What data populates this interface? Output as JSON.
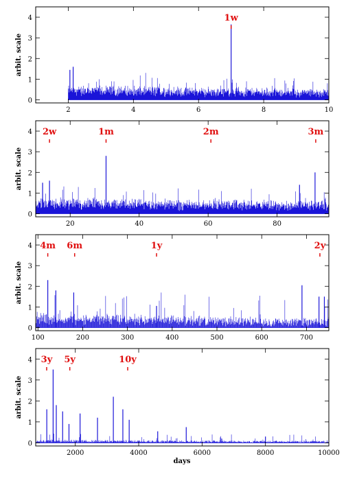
{
  "colors": {
    "series": "#1a14d8",
    "annotation": "#e01010",
    "axis": "#000000"
  },
  "chart_data": [
    {
      "type": "line",
      "title": "",
      "xlabel": "",
      "ylabel": "arbit. scale",
      "xlim": [
        1,
        10
      ],
      "ylim": [
        -0.15,
        4.5
      ],
      "xticks": [
        2,
        4,
        6,
        8,
        10
      ],
      "yticks": [
        0,
        1,
        2,
        3,
        4
      ],
      "noise": {
        "x_start": 2,
        "x_end": 10,
        "baseline": 0.45,
        "amplitude": 0.55,
        "decay_to": 0.3,
        "step": 0.012
      },
      "peaks": [
        {
          "x": 2.05,
          "y": 1.45
        },
        {
          "x": 2.15,
          "y": 1.6
        },
        {
          "x": 7.0,
          "y": 3.65
        }
      ],
      "annotations": [
        {
          "label": "1w",
          "x": 7.0
        }
      ]
    },
    {
      "type": "line",
      "title": "",
      "xlabel": "",
      "ylabel": "arbit. scale",
      "xlim": [
        10,
        95
      ],
      "ylim": [
        -0.15,
        4.5
      ],
      "xticks": [
        20,
        40,
        60,
        80
      ],
      "yticks": [
        0,
        1,
        2,
        3,
        4
      ],
      "noise": {
        "x_start": 10,
        "x_end": 95,
        "baseline": 0.5,
        "amplitude": 0.6,
        "decay_to": 0.35,
        "step": 0.12
      },
      "peaks": [
        {
          "x": 30.4,
          "y": 2.8
        },
        {
          "x": 91,
          "y": 2.0
        },
        {
          "x": 86.5,
          "y": 1.4
        },
        {
          "x": 12,
          "y": 1.5
        },
        {
          "x": 14,
          "y": 1.6
        }
      ],
      "annotations": [
        {
          "label": "2w",
          "x": 14
        },
        {
          "label": "1m",
          "x": 30.4
        },
        {
          "label": "2m",
          "x": 60.8
        },
        {
          "label": "3m",
          "x": 91.2
        }
      ]
    },
    {
      "type": "line",
      "title": "",
      "xlabel": "",
      "ylabel": "arbit. scale",
      "xlim": [
        95,
        750
      ],
      "ylim": [
        -0.15,
        4.5
      ],
      "xticks": [
        100,
        200,
        300,
        400,
        500,
        600,
        700
      ],
      "yticks": [
        0,
        1,
        2,
        3,
        4
      ],
      "noise": {
        "x_start": 95,
        "x_end": 750,
        "baseline": 0.35,
        "amplitude": 0.9,
        "decay_to": 0.08,
        "step": 1.1
      },
      "peaks": [
        {
          "x": 122,
          "y": 2.3
        },
        {
          "x": 140,
          "y": 1.8
        },
        {
          "x": 180,
          "y": 1.7
        },
        {
          "x": 365,
          "y": 1.05
        },
        {
          "x": 690,
          "y": 2.05
        },
        {
          "x": 728,
          "y": 1.5
        },
        {
          "x": 740,
          "y": 1.5
        }
      ],
      "annotations": [
        {
          "label": "4m",
          "x": 122
        },
        {
          "label": "6m",
          "x": 182
        },
        {
          "label": "1y",
          "x": 365
        },
        {
          "label": "2y",
          "x": 730
        }
      ]
    },
    {
      "type": "line",
      "title": "",
      "xlabel": "days",
      "ylabel": "arbit. scale",
      "xlim": [
        750,
        10000
      ],
      "ylim": [
        -0.15,
        4.5
      ],
      "xticks": [
        2000,
        4000,
        6000,
        8000,
        10000
      ],
      "yticks": [
        0,
        1,
        2,
        3,
        4
      ],
      "noise": {
        "x_start": 750,
        "x_end": 10000,
        "baseline": 0.05,
        "amplitude": 0.25,
        "decay_to": 0.0,
        "step": 16
      },
      "peaks": [
        {
          "x": 1100,
          "y": 1.6
        },
        {
          "x": 1300,
          "y": 3.5
        },
        {
          "x": 1400,
          "y": 1.8
        },
        {
          "x": 1600,
          "y": 1.5
        },
        {
          "x": 1800,
          "y": 0.9
        },
        {
          "x": 2150,
          "y": 1.4
        },
        {
          "x": 2700,
          "y": 1.2
        },
        {
          "x": 3200,
          "y": 2.2
        },
        {
          "x": 3500,
          "y": 1.6
        },
        {
          "x": 3700,
          "y": 1.1
        },
        {
          "x": 4600,
          "y": 0.55
        },
        {
          "x": 5500,
          "y": 0.75
        },
        {
          "x": 8000,
          "y": 0.3
        }
      ],
      "annotations": [
        {
          "label": "3y",
          "x": 1096
        },
        {
          "label": "5y",
          "x": 1826
        },
        {
          "label": "10y",
          "x": 3653
        }
      ]
    }
  ]
}
